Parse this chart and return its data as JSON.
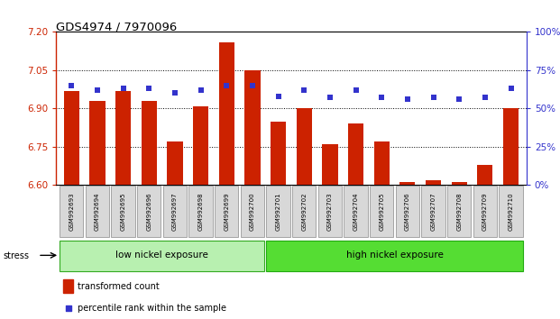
{
  "title": "GDS4974 / 7970096",
  "samples": [
    "GSM992693",
    "GSM992694",
    "GSM992695",
    "GSM992696",
    "GSM992697",
    "GSM992698",
    "GSM992699",
    "GSM992700",
    "GSM992701",
    "GSM992702",
    "GSM992703",
    "GSM992704",
    "GSM992705",
    "GSM992706",
    "GSM992707",
    "GSM992708",
    "GSM992709",
    "GSM992710"
  ],
  "bar_values": [
    6.97,
    6.93,
    6.97,
    6.93,
    6.77,
    6.91,
    7.16,
    7.05,
    6.85,
    6.9,
    6.76,
    6.84,
    6.77,
    6.61,
    6.62,
    6.61,
    6.68,
    6.9
  ],
  "dot_values": [
    65,
    62,
    63,
    63,
    60,
    62,
    65,
    65,
    58,
    62,
    57,
    62,
    57,
    56,
    57,
    56,
    57,
    63
  ],
  "bar_color": "#cc2200",
  "dot_color": "#3333cc",
  "ylim_left": [
    6.6,
    7.2
  ],
  "ylim_right": [
    0,
    100
  ],
  "yticks_left": [
    6.6,
    6.75,
    6.9,
    7.05,
    7.2
  ],
  "yticks_right": [
    0,
    25,
    50,
    75,
    100
  ],
  "ytick_labels_right": [
    "0%",
    "25%",
    "50%",
    "75%",
    "100%"
  ],
  "grid_values": [
    6.75,
    6.9,
    7.05
  ],
  "group_labels": [
    "low nickel exposure",
    "high nickel exposure"
  ],
  "low_n": 8,
  "high_n": 10,
  "low_color": "#b8f0b0",
  "high_color": "#55dd33",
  "stress_label": "stress",
  "legend_bar_label": "transformed count",
  "legend_dot_label": "percentile rank within the sample",
  "bar_bottom": 6.6,
  "title_color": "#000000"
}
